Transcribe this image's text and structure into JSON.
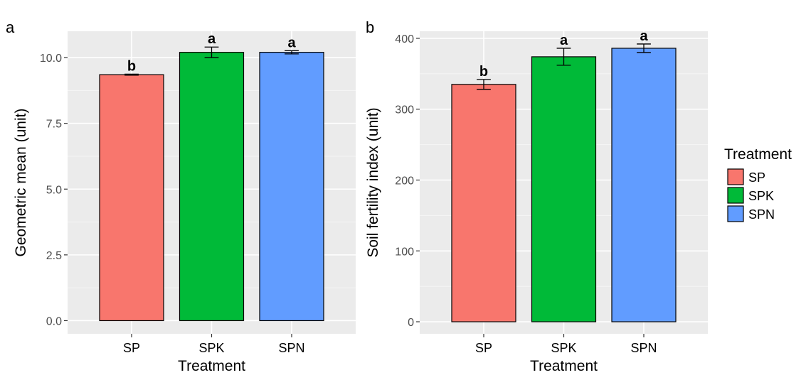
{
  "chart_data": [
    {
      "panel_label": "a",
      "type": "bar",
      "categories": [
        "SP",
        "SPK",
        "SPN"
      ],
      "values": [
        9.35,
        10.2,
        10.2
      ],
      "error_low": [
        9.33,
        10.0,
        10.14
      ],
      "error_high": [
        9.37,
        10.4,
        10.26
      ],
      "significance": [
        "b",
        "a",
        "a"
      ],
      "xlabel": "Treatment",
      "ylabel": "Geometric mean (unit)",
      "ylim": [
        -0.5,
        11.0
      ],
      "yticks": [
        0.0,
        2.5,
        5.0,
        7.5,
        10.0
      ],
      "ytick_labels": [
        "0.0",
        "2.5",
        "5.0",
        "7.5",
        "10.0"
      ],
      "grid": true
    },
    {
      "panel_label": "b",
      "type": "bar",
      "categories": [
        "SP",
        "SPK",
        "SPN"
      ],
      "values": [
        335,
        374,
        386
      ],
      "error_low": [
        328,
        362,
        380
      ],
      "error_high": [
        342,
        386,
        392
      ],
      "significance": [
        "b",
        "a",
        "a"
      ],
      "xlabel": "Treatment",
      "ylabel": "Soil fertility index (unit)",
      "ylim": [
        -17,
        410
      ],
      "yticks": [
        0,
        100,
        200,
        300,
        400
      ],
      "ytick_labels": [
        "0",
        "100",
        "200",
        "300",
        "400"
      ],
      "grid": true
    }
  ],
  "legend": {
    "title": "Treatment",
    "placement": "right",
    "items": [
      {
        "label": "SP",
        "color": "#f8766d"
      },
      {
        "label": "SPK",
        "color": "#00ba38"
      },
      {
        "label": "SPN",
        "color": "#619cff"
      }
    ]
  },
  "colors": {
    "panel_bg": "#ebebeb",
    "grid_major": "#ffffff",
    "bar_outline": "#000000",
    "SP": "#f8766d",
    "SPK": "#00ba38",
    "SPN": "#619cff"
  }
}
